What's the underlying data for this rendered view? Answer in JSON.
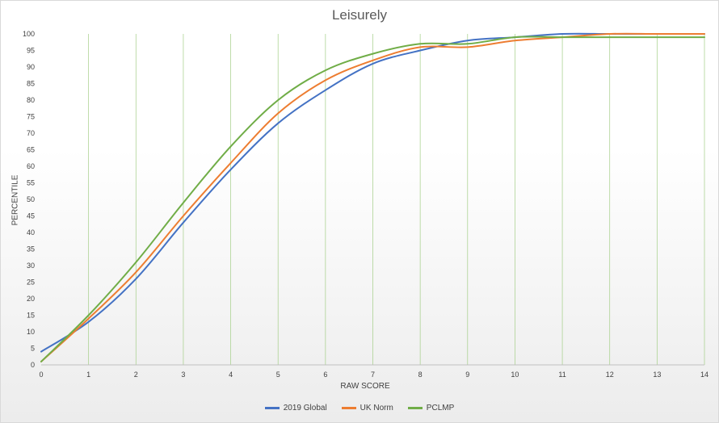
{
  "chart_data": {
    "type": "line",
    "title": "Leisurely",
    "xlabel": "RAW SCORE",
    "ylabel": "PERCENTILE",
    "x": [
      0,
      1,
      2,
      3,
      4,
      5,
      6,
      7,
      8,
      9,
      10,
      11,
      12,
      13,
      14
    ],
    "xlim": [
      0,
      14
    ],
    "ylim": [
      0,
      100
    ],
    "y_ticks": [
      0,
      5,
      10,
      15,
      20,
      25,
      30,
      35,
      40,
      45,
      50,
      55,
      60,
      65,
      70,
      75,
      80,
      85,
      90,
      95,
      100
    ],
    "grid": "vertical",
    "legend_position": "bottom",
    "series": [
      {
        "name": "2019 Global",
        "color": "#4472c4",
        "values": [
          4,
          13,
          26,
          43,
          59,
          73,
          83,
          91,
          95,
          98,
          99,
          100,
          100,
          100,
          100
        ]
      },
      {
        "name": "UK Norm",
        "color": "#ed7d31",
        "values": [
          1,
          14,
          28,
          45,
          61,
          76,
          86,
          92,
          96,
          96,
          98,
          99,
          100,
          100,
          100
        ]
      },
      {
        "name": "PCLMP",
        "color": "#70ad47",
        "values": [
          1,
          15,
          31,
          49,
          66,
          80,
          89,
          94,
          97,
          97,
          99,
          99,
          99,
          99,
          99
        ]
      }
    ],
    "grid_color": "#a9d18e"
  }
}
